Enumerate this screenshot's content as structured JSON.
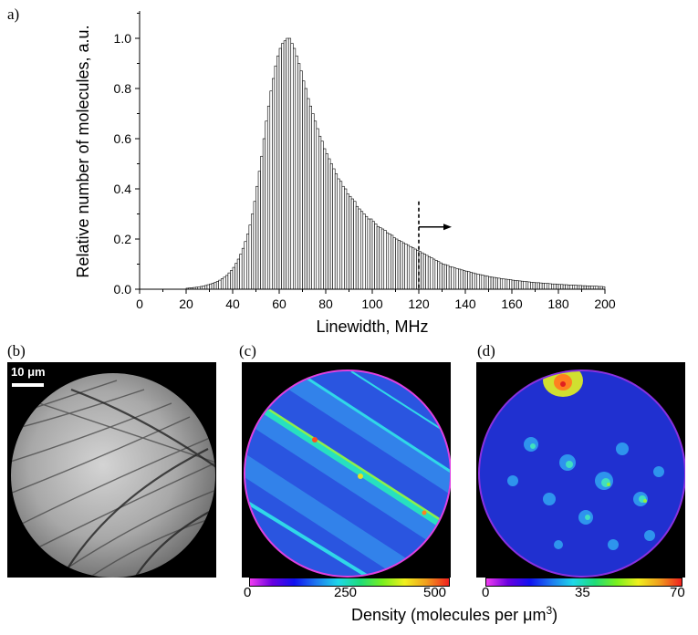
{
  "panel_labels": {
    "a": "a)",
    "b": "(b)",
    "c": "(c)",
    "d": "(d)"
  },
  "scale_bar_label": "10 μm",
  "density_caption": {
    "main": "Density (molecules per μm",
    "sup": "3",
    "close": ")"
  },
  "colorbar_c": {
    "ticks": [
      "0",
      "250",
      "500"
    ]
  },
  "colorbar_d": {
    "ticks": [
      "0",
      "35",
      "70"
    ]
  },
  "chart_data": {
    "type": "bar",
    "xlabel": "Linewidth, MHz",
    "ylabel": "Relative number of molecules, a.u.",
    "xlim": [
      0,
      200
    ],
    "ylim": [
      0,
      1.1
    ],
    "xticks": [
      "0",
      "20",
      "40",
      "60",
      "80",
      "100",
      "120",
      "140",
      "160",
      "180",
      "200"
    ],
    "yticks": [
      "0.0",
      "0.2",
      "0.4",
      "0.6",
      "0.8",
      "1.0"
    ],
    "bin_width": 1,
    "annotation": {
      "type": "dashed-line-with-arrow",
      "x": 120,
      "y_top": 0.35,
      "arrow_direction": "right"
    },
    "bins": [
      [
        20,
        0.004
      ],
      [
        21,
        0.005
      ],
      [
        22,
        0.006
      ],
      [
        23,
        0.007
      ],
      [
        24,
        0.008
      ],
      [
        25,
        0.009
      ],
      [
        26,
        0.011
      ],
      [
        27,
        0.013
      ],
      [
        28,
        0.015
      ],
      [
        29,
        0.018
      ],
      [
        30,
        0.021
      ],
      [
        31,
        0.024
      ],
      [
        32,
        0.027
      ],
      [
        33,
        0.031
      ],
      [
        34,
        0.036
      ],
      [
        35,
        0.042
      ],
      [
        36,
        0.048
      ],
      [
        37,
        0.055
      ],
      [
        38,
        0.065
      ],
      [
        39,
        0.075
      ],
      [
        40,
        0.087
      ],
      [
        41,
        0.103
      ],
      [
        42,
        0.12
      ],
      [
        43,
        0.14
      ],
      [
        44,
        0.163
      ],
      [
        45,
        0.19
      ],
      [
        46,
        0.22
      ],
      [
        47,
        0.256
      ],
      [
        48,
        0.3
      ],
      [
        49,
        0.35
      ],
      [
        50,
        0.41
      ],
      [
        51,
        0.47
      ],
      [
        52,
        0.53
      ],
      [
        53,
        0.6
      ],
      [
        54,
        0.67
      ],
      [
        55,
        0.73
      ],
      [
        56,
        0.79
      ],
      [
        57,
        0.84
      ],
      [
        58,
        0.89
      ],
      [
        59,
        0.93
      ],
      [
        60,
        0.96
      ],
      [
        61,
        0.98
      ],
      [
        62,
        0.99
      ],
      [
        63,
        1.0
      ],
      [
        64,
        1.0
      ],
      [
        65,
        0.98
      ],
      [
        66,
        0.96
      ],
      [
        67,
        0.93
      ],
      [
        68,
        0.9
      ],
      [
        69,
        0.87
      ],
      [
        70,
        0.83
      ],
      [
        71,
        0.8
      ],
      [
        72,
        0.76
      ],
      [
        73,
        0.73
      ],
      [
        74,
        0.7
      ],
      [
        75,
        0.67
      ],
      [
        76,
        0.64
      ],
      [
        77,
        0.61
      ],
      [
        78,
        0.59
      ],
      [
        79,
        0.56
      ],
      [
        80,
        0.54
      ],
      [
        81,
        0.52
      ],
      [
        82,
        0.5
      ],
      [
        83,
        0.48
      ],
      [
        84,
        0.46
      ],
      [
        85,
        0.44
      ],
      [
        86,
        0.43
      ],
      [
        87,
        0.41
      ],
      [
        88,
        0.4
      ],
      [
        89,
        0.38
      ],
      [
        90,
        0.37
      ],
      [
        91,
        0.36
      ],
      [
        92,
        0.35
      ],
      [
        93,
        0.33
      ],
      [
        94,
        0.32
      ],
      [
        95,
        0.31
      ],
      [
        96,
        0.3
      ],
      [
        97,
        0.29
      ],
      [
        98,
        0.28
      ],
      [
        99,
        0.28
      ],
      [
        100,
        0.27
      ],
      [
        101,
        0.26
      ],
      [
        102,
        0.25
      ],
      [
        103,
        0.245
      ],
      [
        104,
        0.24
      ],
      [
        105,
        0.235
      ],
      [
        106,
        0.225
      ],
      [
        107,
        0.22
      ],
      [
        108,
        0.215
      ],
      [
        109,
        0.205
      ],
      [
        110,
        0.2
      ],
      [
        111,
        0.195
      ],
      [
        112,
        0.19
      ],
      [
        113,
        0.185
      ],
      [
        114,
        0.18
      ],
      [
        115,
        0.175
      ],
      [
        116,
        0.17
      ],
      [
        117,
        0.165
      ],
      [
        118,
        0.16
      ],
      [
        119,
        0.155
      ],
      [
        120,
        0.15
      ],
      [
        121,
        0.145
      ],
      [
        122,
        0.14
      ],
      [
        123,
        0.135
      ],
      [
        124,
        0.13
      ],
      [
        125,
        0.125
      ],
      [
        126,
        0.12
      ],
      [
        127,
        0.115
      ],
      [
        128,
        0.11
      ],
      [
        129,
        0.105
      ],
      [
        130,
        0.1
      ],
      [
        131,
        0.098
      ],
      [
        132,
        0.095
      ],
      [
        133,
        0.09
      ],
      [
        134,
        0.088
      ],
      [
        135,
        0.085
      ],
      [
        136,
        0.082
      ],
      [
        137,
        0.08
      ],
      [
        138,
        0.077
      ],
      [
        139,
        0.074
      ],
      [
        140,
        0.072
      ],
      [
        141,
        0.07
      ],
      [
        142,
        0.067
      ],
      [
        143,
        0.065
      ],
      [
        144,
        0.062
      ],
      [
        145,
        0.06
      ],
      [
        146,
        0.058
      ],
      [
        147,
        0.056
      ],
      [
        148,
        0.054
      ],
      [
        149,
        0.052
      ],
      [
        150,
        0.05
      ],
      [
        151,
        0.048
      ],
      [
        152,
        0.047
      ],
      [
        153,
        0.045
      ],
      [
        154,
        0.044
      ],
      [
        155,
        0.042
      ],
      [
        156,
        0.041
      ],
      [
        157,
        0.04
      ],
      [
        158,
        0.039
      ],
      [
        159,
        0.038
      ],
      [
        160,
        0.036
      ],
      [
        161,
        0.035
      ],
      [
        162,
        0.034
      ],
      [
        163,
        0.033
      ],
      [
        164,
        0.032
      ],
      [
        165,
        0.031
      ],
      [
        166,
        0.03
      ],
      [
        167,
        0.029
      ],
      [
        168,
        0.028
      ],
      [
        169,
        0.027
      ],
      [
        170,
        0.026
      ],
      [
        171,
        0.026
      ],
      [
        172,
        0.025
      ],
      [
        173,
        0.024
      ],
      [
        174,
        0.023
      ],
      [
        175,
        0.023
      ],
      [
        176,
        0.022
      ],
      [
        177,
        0.021
      ],
      [
        178,
        0.021
      ],
      [
        179,
        0.02
      ],
      [
        180,
        0.019
      ],
      [
        181,
        0.019
      ],
      [
        182,
        0.018
      ],
      [
        183,
        0.018
      ],
      [
        184,
        0.017
      ],
      [
        185,
        0.017
      ],
      [
        186,
        0.016
      ],
      [
        187,
        0.016
      ],
      [
        188,
        0.015
      ],
      [
        189,
        0.015
      ],
      [
        190,
        0.014
      ],
      [
        191,
        0.014
      ],
      [
        192,
        0.013
      ],
      [
        193,
        0.013
      ],
      [
        194,
        0.012
      ],
      [
        195,
        0.012
      ],
      [
        196,
        0.012
      ],
      [
        197,
        0.011
      ],
      [
        198,
        0.011
      ],
      [
        199,
        0.01
      ]
    ]
  }
}
